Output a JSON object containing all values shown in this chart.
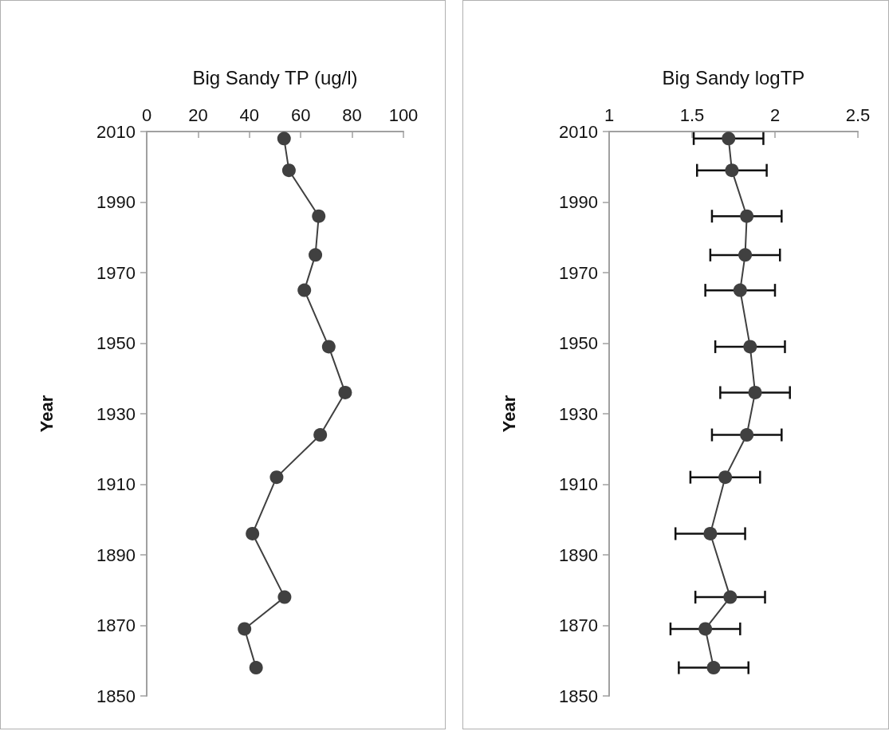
{
  "chart_data": [
    {
      "type": "line",
      "xlabel": "Big Sandy TP (ug/l)",
      "ylabel": "Year",
      "xlim": [
        0,
        100
      ],
      "xticks": [
        0,
        20,
        40,
        60,
        80,
        100
      ],
      "ylim": [
        1850,
        2010
      ],
      "yticks": [
        1850,
        1870,
        1890,
        1910,
        1930,
        1950,
        1970,
        1990,
        2010
      ],
      "grid": false,
      "marker": "circle",
      "line_style": "solid",
      "series": [
        {
          "color": "#404040",
          "x": [
            53.5,
            55.4,
            67.0,
            65.7,
            61.4,
            70.9,
            77.3,
            67.6,
            50.6,
            41.2,
            53.7,
            38.1,
            42.6
          ],
          "values": [
            2008,
            1999,
            1986,
            1975,
            1965,
            1949,
            1936,
            1924,
            1912,
            1896,
            1878,
            1869,
            1858
          ]
        }
      ]
    },
    {
      "type": "line",
      "xlabel": "Big Sandy logTP",
      "ylabel": "Year",
      "xlim": [
        1,
        2.5
      ],
      "xticks": [
        1,
        1.5,
        2,
        2.5
      ],
      "ylim": [
        1850,
        2010
      ],
      "yticks": [
        1850,
        1870,
        1890,
        1910,
        1930,
        1950,
        1970,
        1990,
        2010
      ],
      "grid": false,
      "marker": "circle",
      "line_style": "solid",
      "series": [
        {
          "color": "#404040",
          "x": [
            1.72,
            1.74,
            1.83,
            1.82,
            1.79,
            1.85,
            1.88,
            1.83,
            1.7,
            1.61,
            1.73,
            1.58,
            1.63
          ],
          "values": [
            2008,
            1999,
            1986,
            1975,
            1965,
            1949,
            1936,
            1924,
            1912,
            1896,
            1878,
            1869,
            1858
          ],
          "xerrors": [
            0.21,
            0.21,
            0.21,
            0.21,
            0.21,
            0.21,
            0.21,
            0.21,
            0.21,
            0.21,
            0.21,
            0.21,
            0.21
          ]
        }
      ]
    }
  ]
}
